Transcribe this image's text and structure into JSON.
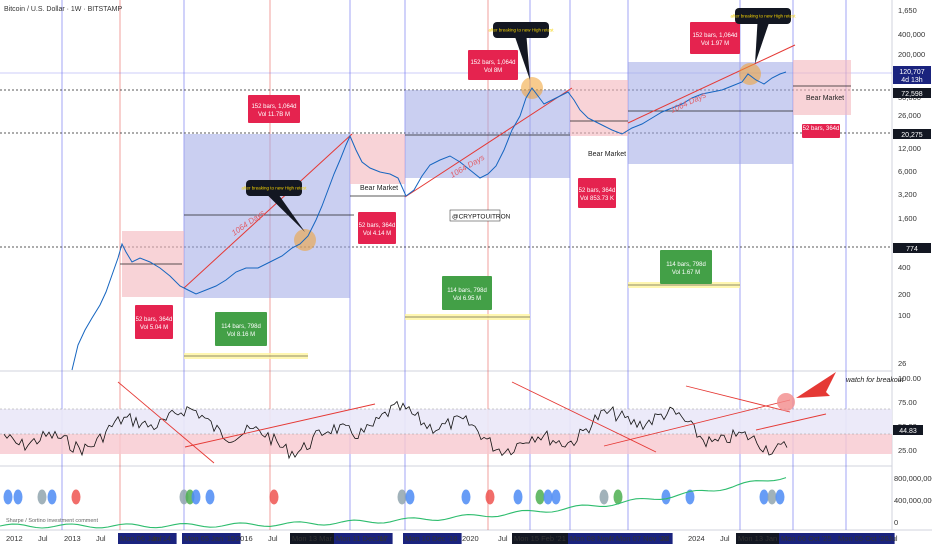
{
  "chart_title": "Bitcoin / U.S. Dollar · 1W · BITSTAMP",
  "chart_data": {
    "type": "line",
    "title": "Bitcoin / U.S. Dollar · 1W · BITSTAMP",
    "y_scale": "log",
    "price_ticks": [
      "1,650",
      "400,000",
      "200,000",
      "50,000",
      "26,000",
      "12,000",
      "6,000",
      "3,200",
      "1,600",
      "400",
      "200",
      "100",
      "26"
    ],
    "price_tags": [
      {
        "label": "120,707",
        "sub": "4d 13h"
      },
      {
        "label": "72,598"
      },
      {
        "label": "20,275"
      },
      {
        "label": "774"
      }
    ],
    "rsi_ticks": [
      "100.00",
      "75.00",
      "50.00",
      "25.00"
    ],
    "rsi_current": "44.83",
    "vol_ticks": [
      "800,000,000",
      "400,000,000",
      "0"
    ],
    "x_labels": [
      {
        "text": "2012",
        "highlight": false
      },
      {
        "text": "Jul",
        "highlight": false
      },
      {
        "text": "2013",
        "highlight": false
      },
      {
        "text": "Jul",
        "highlight": false
      },
      {
        "text": "Mon 06 Jan '14",
        "highlight": true
      },
      {
        "text": "Jul",
        "highlight": false
      },
      {
        "text": "Mon 05 Jan '15",
        "highlight": true
      },
      {
        "text": "2016",
        "highlight": false
      },
      {
        "text": "Jul",
        "highlight": false
      },
      {
        "text": "Mon 13 Mar '17",
        "highlight": "dark"
      },
      {
        "text": "Mon 11 Dec '17",
        "highlight": true
      },
      {
        "text": "Jul",
        "highlight": false
      },
      {
        "text": "Mon 10 Dec '18",
        "highlight": true
      },
      {
        "text": "2020",
        "highlight": false
      },
      {
        "text": "Jul",
        "highlight": false
      },
      {
        "text": "Mon 15 Feb '21",
        "highlight": "dark"
      },
      {
        "text": "Mon 08 Nov '21",
        "highlight": true
      },
      {
        "text": "Jul",
        "highlight": false
      },
      {
        "text": "Mon 07 Nov '22",
        "highlight": true
      },
      {
        "text": "Jul",
        "highlight": false
      },
      {
        "text": "2024",
        "highlight": false
      },
      {
        "text": "Jul",
        "highlight": false
      },
      {
        "text": "Mon 13 Jan '25",
        "highlight": "dark"
      },
      {
        "text": "Mon 06 Oct '25",
        "highlight": true
      },
      {
        "text": "Mon 05 Oct '26",
        "highlight": true
      },
      {
        "text": "Jul",
        "highlight": false
      }
    ],
    "annotations": {
      "bull_boxes": [
        {
          "line1": "152 bars, 1,064d",
          "line2": "Vol 11.7B M"
        },
        {
          "line1": "152 bars, 1,064d",
          "line2": "Vol 8M"
        },
        {
          "line1": "152 bars, 1,064d",
          "line2": "Vol 1.97 M"
        }
      ],
      "bear_boxes": [
        {
          "line1": "52 bars, 364d",
          "line2": "Vol 5.04 M"
        },
        {
          "line1": "52 bars, 364d",
          "line2": "Vol 4.14 M"
        },
        {
          "line1": "52 bars, 364d",
          "line2": "Vol 853.73 K"
        },
        {
          "line1": "52 bars, 364d",
          "line2": ""
        }
      ],
      "green_boxes": [
        {
          "line1": "114 bars, 798d",
          "line2": "Vol 8.16 M"
        },
        {
          "line1": "114 bars, 798d",
          "line2": "Vol 6.95 M"
        },
        {
          "line1": "114 bars, 798d",
          "line2": "Vol 1.67 M"
        }
      ],
      "bear_market_label": "Bear Market",
      "days_label": "1064 Days",
      "callout_text": "after breaking to new High retest",
      "handle": "@CRYPTOUITRON",
      "watch_label": "watch for breakout",
      "volume_text": "Sharpe / Sortino investment comment"
    }
  },
  "colors": {
    "bull_fill": "#9fa8e6",
    "bear_fill": "#f4b6bd",
    "green_fill": "#43a047",
    "red_box": "#e5234f",
    "trend_red": "#e53935",
    "price_line": "#1565c0",
    "dark_tag": "#131722",
    "navy_tag": "#1a237e",
    "circle_orange": "#f0a030"
  }
}
